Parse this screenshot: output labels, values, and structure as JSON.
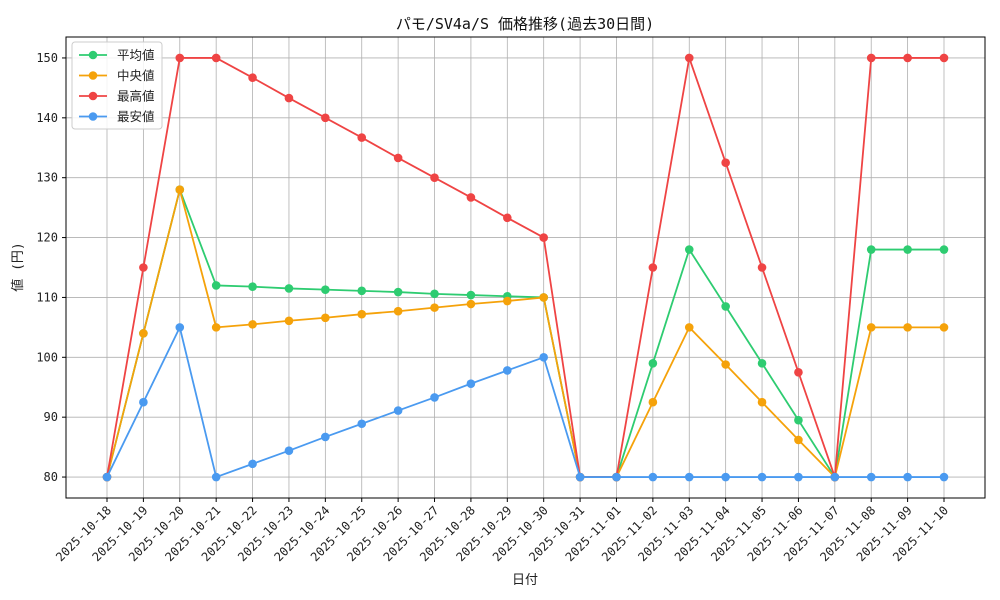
{
  "chart_data": {
    "type": "line",
    "title": "パモ/SV4a/S 価格推移(過去30日間)",
    "xlabel": "日付",
    "ylabel": "値 (円)",
    "ylim": [
      76.5,
      153.5
    ],
    "yticks": [
      80,
      90,
      100,
      110,
      120,
      130,
      140,
      150
    ],
    "grid": true,
    "legend_position": "top-left",
    "x": [
      "2025-10-18",
      "2025-10-19",
      "2025-10-20",
      "2025-10-21",
      "2025-10-22",
      "2025-10-23",
      "2025-10-24",
      "2025-10-25",
      "2025-10-26",
      "2025-10-27",
      "2025-10-28",
      "2025-10-29",
      "2025-10-30",
      "2025-10-31",
      "2025-11-01",
      "2025-11-02",
      "2025-11-03",
      "2025-11-04",
      "2025-11-05",
      "2025-11-06",
      "2025-11-07",
      "2025-11-08",
      "2025-11-09",
      "2025-11-10"
    ],
    "series": [
      {
        "name": "平均値",
        "color": "#2ecc71",
        "values": [
          80,
          104,
          128,
          112,
          111.8,
          111.5,
          111.3,
          111.1,
          110.9,
          110.6,
          110.4,
          110.2,
          110,
          80,
          80,
          99,
          118,
          108.5,
          99,
          89.5,
          80,
          118,
          118,
          118
        ]
      },
      {
        "name": "中央値",
        "color": "#f5a20a",
        "values": [
          80,
          104,
          128,
          105,
          105.5,
          106.1,
          106.6,
          107.2,
          107.7,
          108.3,
          108.9,
          109.4,
          110,
          80,
          80,
          92.5,
          105,
          98.8,
          92.5,
          86.2,
          80,
          105,
          105,
          105
        ]
      },
      {
        "name": "最高値",
        "color": "#ef4444",
        "values": [
          80,
          115,
          150,
          150,
          146.7,
          143.3,
          140,
          136.7,
          133.3,
          130,
          126.7,
          123.3,
          120,
          80,
          80,
          115,
          150,
          132.5,
          115,
          97.5,
          80,
          150,
          150,
          150
        ]
      },
      {
        "name": "最安値",
        "color": "#4a9af0",
        "values": [
          80,
          92.5,
          105,
          80,
          82.2,
          84.4,
          86.7,
          88.9,
          91.1,
          93.3,
          95.6,
          97.8,
          100,
          80,
          80,
          80,
          80,
          80,
          80,
          80,
          80,
          80,
          80,
          80
        ]
      }
    ]
  }
}
